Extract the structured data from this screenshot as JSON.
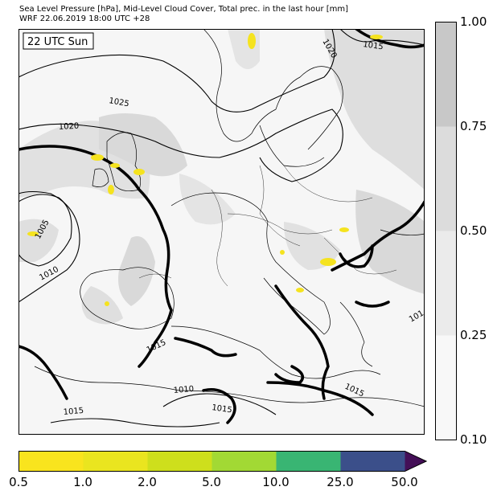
{
  "header": {
    "line1": "Sea Level Pressure [hPa], Mid-Level Cloud Cover, Total prec. in the last hour [mm]",
    "line2": "WRF 22.06.2019 18:00 UTC +28"
  },
  "map": {
    "time_label": "22 UTC Sun",
    "isobar_labels": [
      "1020",
      "1015",
      "1025",
      "1020",
      "1005",
      "1010",
      "1015",
      "1010",
      "1015",
      "1015",
      "1015",
      "101"
    ],
    "colors": {
      "land_line": "#000000",
      "cloud_light": "#e6e6e6",
      "cloud_mid": "#d2d2d2",
      "precip": "#f5e31f"
    }
  },
  "cloud_colorbar": {
    "ticks": [
      "1.00",
      "0.75",
      "0.50",
      "0.25",
      "0.10"
    ],
    "colors": [
      "#c8c8c8",
      "#dcdcdc",
      "#ebebeb",
      "#f8f8f8"
    ]
  },
  "precip_colorbar": {
    "ticks": [
      "0.5",
      "1.0",
      "2.0",
      "5.0",
      "10.0",
      "25.0",
      "50.0"
    ],
    "colors": [
      "#f9e41e",
      "#eae51f",
      "#cedf1c",
      "#a2d934",
      "#39b573",
      "#3b4f8a",
      "#440f57"
    ]
  }
}
